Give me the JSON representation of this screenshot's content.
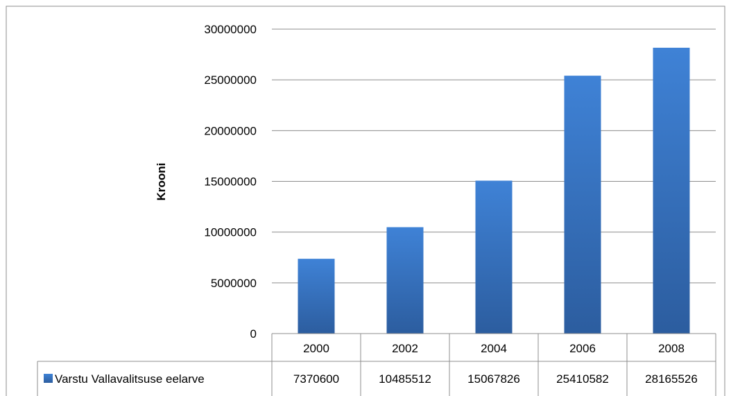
{
  "chart_data": {
    "type": "bar",
    "categories": [
      "2000",
      "2002",
      "2004",
      "2006",
      "2008"
    ],
    "series": [
      {
        "name": "Varstu Vallavalitsuse eelarve",
        "values": [
          7370600,
          10485512,
          15067826,
          25410582,
          28165526
        ],
        "value_labels": [
          "7370600",
          "10485512",
          "15067826",
          "25410582",
          "28165526"
        ],
        "color": "#3b72c4"
      }
    ],
    "ylabel": "Krooni",
    "xlabel": "",
    "ylim": [
      0,
      30000000
    ],
    "yticks": [
      "0",
      "5000000",
      "10000000",
      "15000000",
      "20000000",
      "25000000",
      "30000000"
    ],
    "grid": true,
    "legend_position": "data-table",
    "has_data_table": true
  },
  "colors": {
    "bar_top": "#3f82d6",
    "bar_bottom": "#2c5d9f",
    "gridline": "#8c8c8c",
    "frame": "#8c8c8c"
  }
}
